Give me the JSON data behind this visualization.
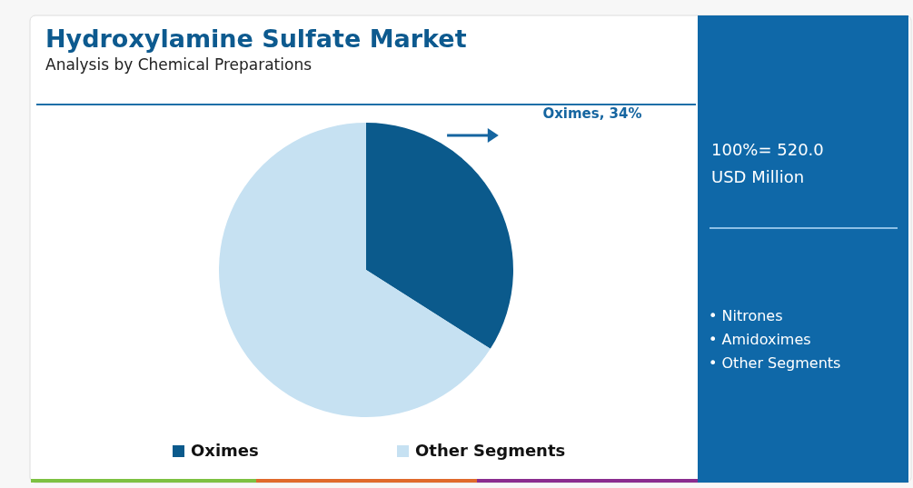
{
  "chart_data": {
    "type": "pie",
    "title": "Hydroxylamine Sulfate Market",
    "subtitle": "Analysis by Chemical Preparations",
    "categories": [
      "Oximes",
      "Other Segments"
    ],
    "values": [
      34,
      66
    ],
    "colors": [
      "#0b5a8c",
      "#c6e1f2"
    ],
    "value_labels": [
      "Oximes, 34%",
      null
    ],
    "annotations": [
      "100%= 520.0 USD Million",
      "• Nitrones",
      "• Amidoximes",
      "• Other Segments"
    ],
    "legend": "bottom"
  }
}
